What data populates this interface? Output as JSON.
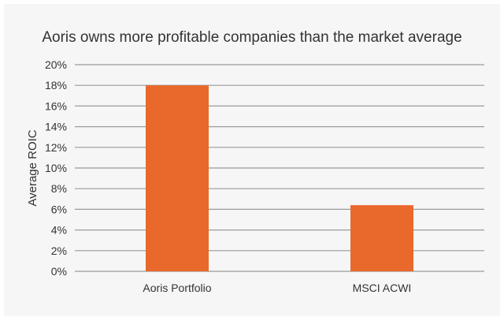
{
  "chart_data": {
    "type": "bar",
    "title": "Aoris owns more profitable companies than the market average",
    "xlabel": "",
    "ylabel": "Average  ROIC",
    "categories": [
      "Aoris Portfolio",
      "MSCI ACWI"
    ],
    "values": [
      18.0,
      6.4
    ],
    "ylim": [
      0,
      20
    ],
    "yticks": [
      0,
      2,
      4,
      6,
      8,
      10,
      12,
      14,
      16,
      18,
      20
    ],
    "ytick_format": "%",
    "grid": true,
    "legend": "none",
    "bar_color": "#e8692b",
    "gridline_color": "#9a9a9a",
    "background_color": "#f6f6f6"
  }
}
